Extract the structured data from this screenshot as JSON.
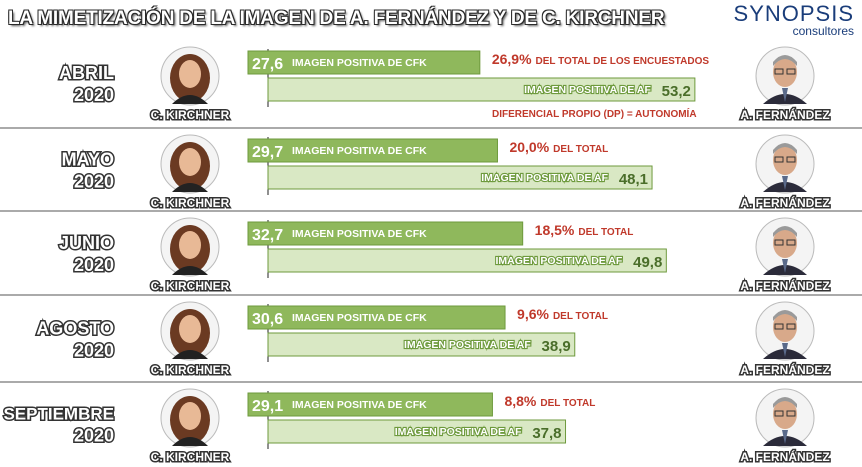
{
  "header": {
    "title": "LA MIMETIZACIÓN DE LA IMAGEN DE A. FERNÁNDEZ Y DE C. KIRCHNER",
    "brand_name": "SYNOPSIS",
    "brand_sub": "consultores"
  },
  "people": {
    "left_name": "C. KIRCHNER",
    "right_name": "A. FERNÁNDEZ"
  },
  "chart_data": {
    "type": "bar",
    "title": "LA MIMETIZACIÓN DE LA IMAGEN DE A. FERNÁNDEZ Y DE C. KIRCHNER",
    "categories": [
      {
        "month": "ABRIL",
        "year": "2020"
      },
      {
        "month": "MAYO",
        "year": "2020"
      },
      {
        "month": "JUNIO",
        "year": "2020"
      },
      {
        "month": "AGOSTO",
        "year": "2020"
      },
      {
        "month": "SEPTIEMBRE",
        "year": "2020"
      }
    ],
    "series": [
      {
        "name": "IMAGEN POSITIVA DE CFK",
        "values": [
          27.6,
          29.7,
          32.7,
          30.6,
          29.1
        ],
        "labels": [
          "27,6",
          "29,7",
          "32,7",
          "30,6",
          "29,1"
        ]
      },
      {
        "name": "IMAGEN POSITIVA DE AF",
        "values": [
          53.2,
          48.1,
          49.8,
          38.9,
          37.8
        ],
        "labels": [
          "53,2",
          "48,1",
          "49,8",
          "38,9",
          "37,8"
        ]
      }
    ],
    "differences": {
      "values": [
        26.9,
        20.0,
        18.5,
        9.6,
        8.8
      ],
      "labels": [
        "26,9%",
        "20,0%",
        "18,5%",
        "9,6%",
        "8,8%"
      ],
      "captions": [
        "DEL TOTAL DE LOS ENCUESTADOS",
        "DEL TOTAL",
        "DEL TOTAL",
        "DEL TOTAL",
        "DEL TOTAL"
      ]
    },
    "annotation": "DIFERENCIAL PROPIO (DP)  = AUTONOMÍA",
    "colors": {
      "cfk_bar": "#8fb85c",
      "af_bar": "#d9e8c4",
      "bar_border": "#6e9a3d",
      "difference_text": "#c0392b",
      "separator": "#555555"
    }
  }
}
